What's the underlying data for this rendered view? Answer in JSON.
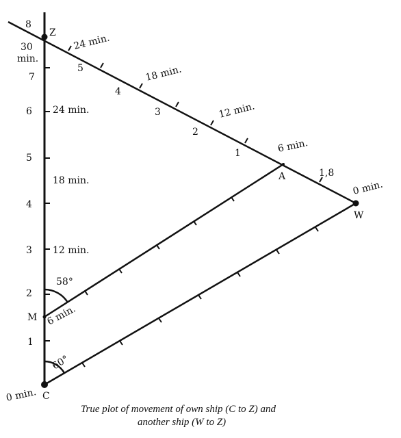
{
  "diagram": {
    "points": {
      "Z": "Z",
      "A": "A",
      "W": "W",
      "M": "M",
      "C": "C"
    },
    "vertical_scale": [
      "1",
      "2",
      "3",
      "4",
      "5",
      "6",
      "7",
      "8"
    ],
    "top_scale": [
      "1",
      "2",
      "3",
      "4",
      "5"
    ],
    "time_labels": {
      "c_zero": "0 min.",
      "w_zero": "0 min.",
      "m_6": "6 min.",
      "v_12": "12 min.",
      "v_18": "18 min.",
      "v_24": "24 min.",
      "v_30_a": "30",
      "v_30_b": "min.",
      "a_6": "6 min.",
      "z_12": "12 min.",
      "z_18": "18 min.",
      "z_24": "24 min."
    },
    "distance_label": "1,8",
    "angles": {
      "m": "58°",
      "c": "60°"
    }
  },
  "caption": {
    "line1": "True plot of movement of own ship (C to Z) and",
    "line2": "another ship (W to Z)"
  }
}
